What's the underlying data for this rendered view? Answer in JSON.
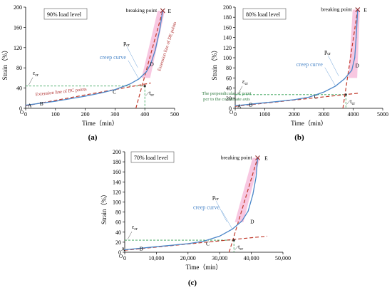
{
  "figure": {
    "panels": [
      {
        "id": "a",
        "caption": "(a)",
        "level_label": "90% load level",
        "xlabel": "Time（min）",
        "ylabel": "Strain（%）",
        "xlim": [
          0,
          500
        ],
        "ylim": [
          0,
          200
        ],
        "xticks": [
          "0",
          "100",
          "200",
          "300",
          "400",
          "500"
        ],
        "yticks": [
          "0",
          "40",
          "80",
          "120",
          "160",
          "200"
        ],
        "creep_curve": [
          [
            0,
            6
          ],
          [
            50,
            10
          ],
          [
            100,
            14
          ],
          [
            150,
            19
          ],
          [
            200,
            24
          ],
          [
            250,
            30
          ],
          [
            300,
            37
          ],
          [
            350,
            48
          ],
          [
            380,
            58
          ],
          [
            405,
            72
          ],
          [
            420,
            88
          ],
          [
            435,
            115
          ],
          [
            450,
            155
          ],
          [
            460,
            193
          ]
        ],
        "bc_extension_line": [
          [
            0,
            5
          ],
          [
            420,
            50
          ]
        ],
        "de_extension_line": [
          [
            370,
            0
          ],
          [
            460,
            193
          ]
        ],
        "epsilon_cr_level": 44,
        "t_cr_value": 400,
        "breaking_point": [
          460,
          193
        ],
        "point_labels": [
          {
            "label": "A",
            "x": 0,
            "y": 6
          },
          {
            "label": "B",
            "x": 40,
            "y": 10
          },
          {
            "label": "C",
            "x": 285,
            "y": 33
          },
          {
            "label": "D",
            "x": 410,
            "y": 88
          },
          {
            "label": "E",
            "x": 470,
            "y": 193
          }
        ],
        "annotations": {
          "breaking_point": "breaking point",
          "E": "E",
          "creep_curve": "creep curve",
          "p_cr": "pcr",
          "epsilon_cr": "εcr",
          "t_cr": "tcr",
          "bc_line": "Extension line of BC points",
          "de_line": "Extension line of DE points",
          "perpendicular": [
            "The perpendicular of point",
            "pcr to the coordinate axis"
          ],
          "origin": "O"
        }
      },
      {
        "id": "b",
        "caption": "(b)",
        "level_label": "80% load level",
        "xlabel": "Time（min）",
        "ylabel": "Strain（%）",
        "xlim": [
          0,
          5000
        ],
        "ylim": [
          0,
          200
        ],
        "xticks": [
          "0",
          "1000",
          "2000",
          "3000",
          "4000",
          "5000"
        ],
        "yticks": [
          "0",
          "20",
          "40",
          "60",
          "80",
          "100",
          "120",
          "140",
          "160",
          "180",
          "200"
        ],
        "creep_curve": [
          [
            0,
            5
          ],
          [
            500,
            8
          ],
          [
            1000,
            11
          ],
          [
            1500,
            14
          ],
          [
            2000,
            17
          ],
          [
            2500,
            22
          ],
          [
            3000,
            32
          ],
          [
            3400,
            44
          ],
          [
            3700,
            58
          ],
          [
            3950,
            75
          ],
          [
            4050,
            100
          ],
          [
            4100,
            140
          ],
          [
            4150,
            195
          ]
        ],
        "bc_extension_line": [
          [
            0,
            4
          ],
          [
            4200,
            30
          ]
        ],
        "de_extension_line": [
          [
            3650,
            0
          ],
          [
            4150,
            195
          ]
        ],
        "epsilon_cr_level": 27,
        "t_cr_value": 3750,
        "breaking_point": [
          4150,
          195
        ],
        "point_labels": [
          {
            "label": "A",
            "x": 0,
            "y": 5
          },
          {
            "label": "B",
            "x": 400,
            "y": 8
          },
          {
            "label": "C",
            "x": 2600,
            "y": 23
          },
          {
            "label": "D",
            "x": 4000,
            "y": 85
          },
          {
            "label": "E",
            "x": 4280,
            "y": 195
          }
        ],
        "annotations": {
          "breaking_point": "breaking point",
          "E": "E",
          "creep_curve": "creep curve",
          "p_cr": "pcr",
          "epsilon_cr": "εcr",
          "t_cr": "tcr",
          "origin": "O"
        }
      },
      {
        "id": "c",
        "caption": "(c)",
        "level_label": "70% load level",
        "xlabel": "Time（min）",
        "ylabel": "Strain（%）",
        "xlim": [
          0,
          50000
        ],
        "ylim": [
          0,
          200
        ],
        "xticks": [
          "0",
          "10,000",
          "20,000",
          "30,000",
          "40,000",
          "50,000"
        ],
        "yticks": [
          "0",
          "20",
          "40",
          "60",
          "80",
          "100",
          "120",
          "140",
          "160",
          "180",
          "200"
        ],
        "creep_curve": [
          [
            0,
            5
          ],
          [
            5000,
            8
          ],
          [
            10000,
            11
          ],
          [
            15000,
            14
          ],
          [
            20000,
            17
          ],
          [
            25000,
            22
          ],
          [
            30000,
            32
          ],
          [
            34000,
            46
          ],
          [
            37000,
            62
          ],
          [
            39000,
            82
          ],
          [
            40500,
            115
          ],
          [
            41500,
            150
          ],
          [
            42000,
            188
          ]
        ],
        "bc_extension_line": [
          [
            0,
            4
          ],
          [
            45000,
            32
          ]
        ],
        "de_extension_line": [
          [
            33000,
            0
          ],
          [
            42000,
            188
          ]
        ],
        "epsilon_cr_level": 24,
        "t_cr_value": 34500,
        "breaking_point": [
          42000,
          188
        ],
        "point_labels": [
          {
            "label": "A",
            "x": -1800,
            "y": 7
          },
          {
            "label": "B",
            "x": 4000,
            "y": 8
          },
          {
            "label": "C",
            "x": 25000,
            "y": 18
          },
          {
            "label": "D",
            "x": 39000,
            "y": 62
          },
          {
            "label": "E",
            "x": 43500,
            "y": 188
          }
        ],
        "annotations": {
          "breaking_point": "breaking point",
          "E": "E",
          "creep_curve": "creep curve",
          "p_cr": "pcr",
          "epsilon_cr": "εcr",
          "t_cr": "tcr",
          "origin": "O"
        }
      }
    ],
    "colors": {
      "creep_curve": "#4a86c8",
      "extension_line": "#c0392b",
      "reference_line": "#2e9e4f",
      "upper_band": "#ec5fa8",
      "axis": "#000000"
    }
  },
  "chart_data": [
    {
      "type": "line",
      "panel": "a",
      "title": "90% load level",
      "xlabel": "Time（min）",
      "ylabel": "Strain（%）",
      "xlim": [
        0,
        500
      ],
      "ylim": [
        0,
        200
      ],
      "series": [
        {
          "name": "creep curve",
          "x": [
            0,
            50,
            100,
            150,
            200,
            250,
            300,
            350,
            380,
            405,
            420,
            435,
            450,
            460
          ],
          "y": [
            6,
            10,
            14,
            19,
            24,
            30,
            37,
            48,
            58,
            72,
            88,
            115,
            155,
            193
          ]
        }
      ]
    },
    {
      "type": "line",
      "panel": "b",
      "title": "80% load level",
      "xlabel": "Time（min）",
      "ylabel": "Strain（%）",
      "xlim": [
        0,
        5000
      ],
      "ylim": [
        0,
        200
      ],
      "series": [
        {
          "name": "creep curve",
          "x": [
            0,
            500,
            1000,
            1500,
            2000,
            2500,
            3000,
            3400,
            3700,
            3950,
            4050,
            4100,
            4150
          ],
          "y": [
            5,
            8,
            11,
            14,
            17,
            22,
            32,
            44,
            58,
            75,
            100,
            140,
            195
          ]
        }
      ]
    },
    {
      "type": "line",
      "panel": "c",
      "title": "70% load level",
      "xlabel": "Time（min）",
      "ylabel": "Strain（%）",
      "xlim": [
        0,
        50000
      ],
      "ylim": [
        0,
        200
      ],
      "series": [
        {
          "name": "creep curve",
          "x": [
            0,
            5000,
            10000,
            15000,
            20000,
            25000,
            30000,
            34000,
            37000,
            39000,
            40500,
            41500,
            42000
          ],
          "y": [
            5,
            8,
            11,
            14,
            17,
            22,
            32,
            46,
            62,
            82,
            115,
            150,
            188
          ]
        }
      ]
    }
  ]
}
